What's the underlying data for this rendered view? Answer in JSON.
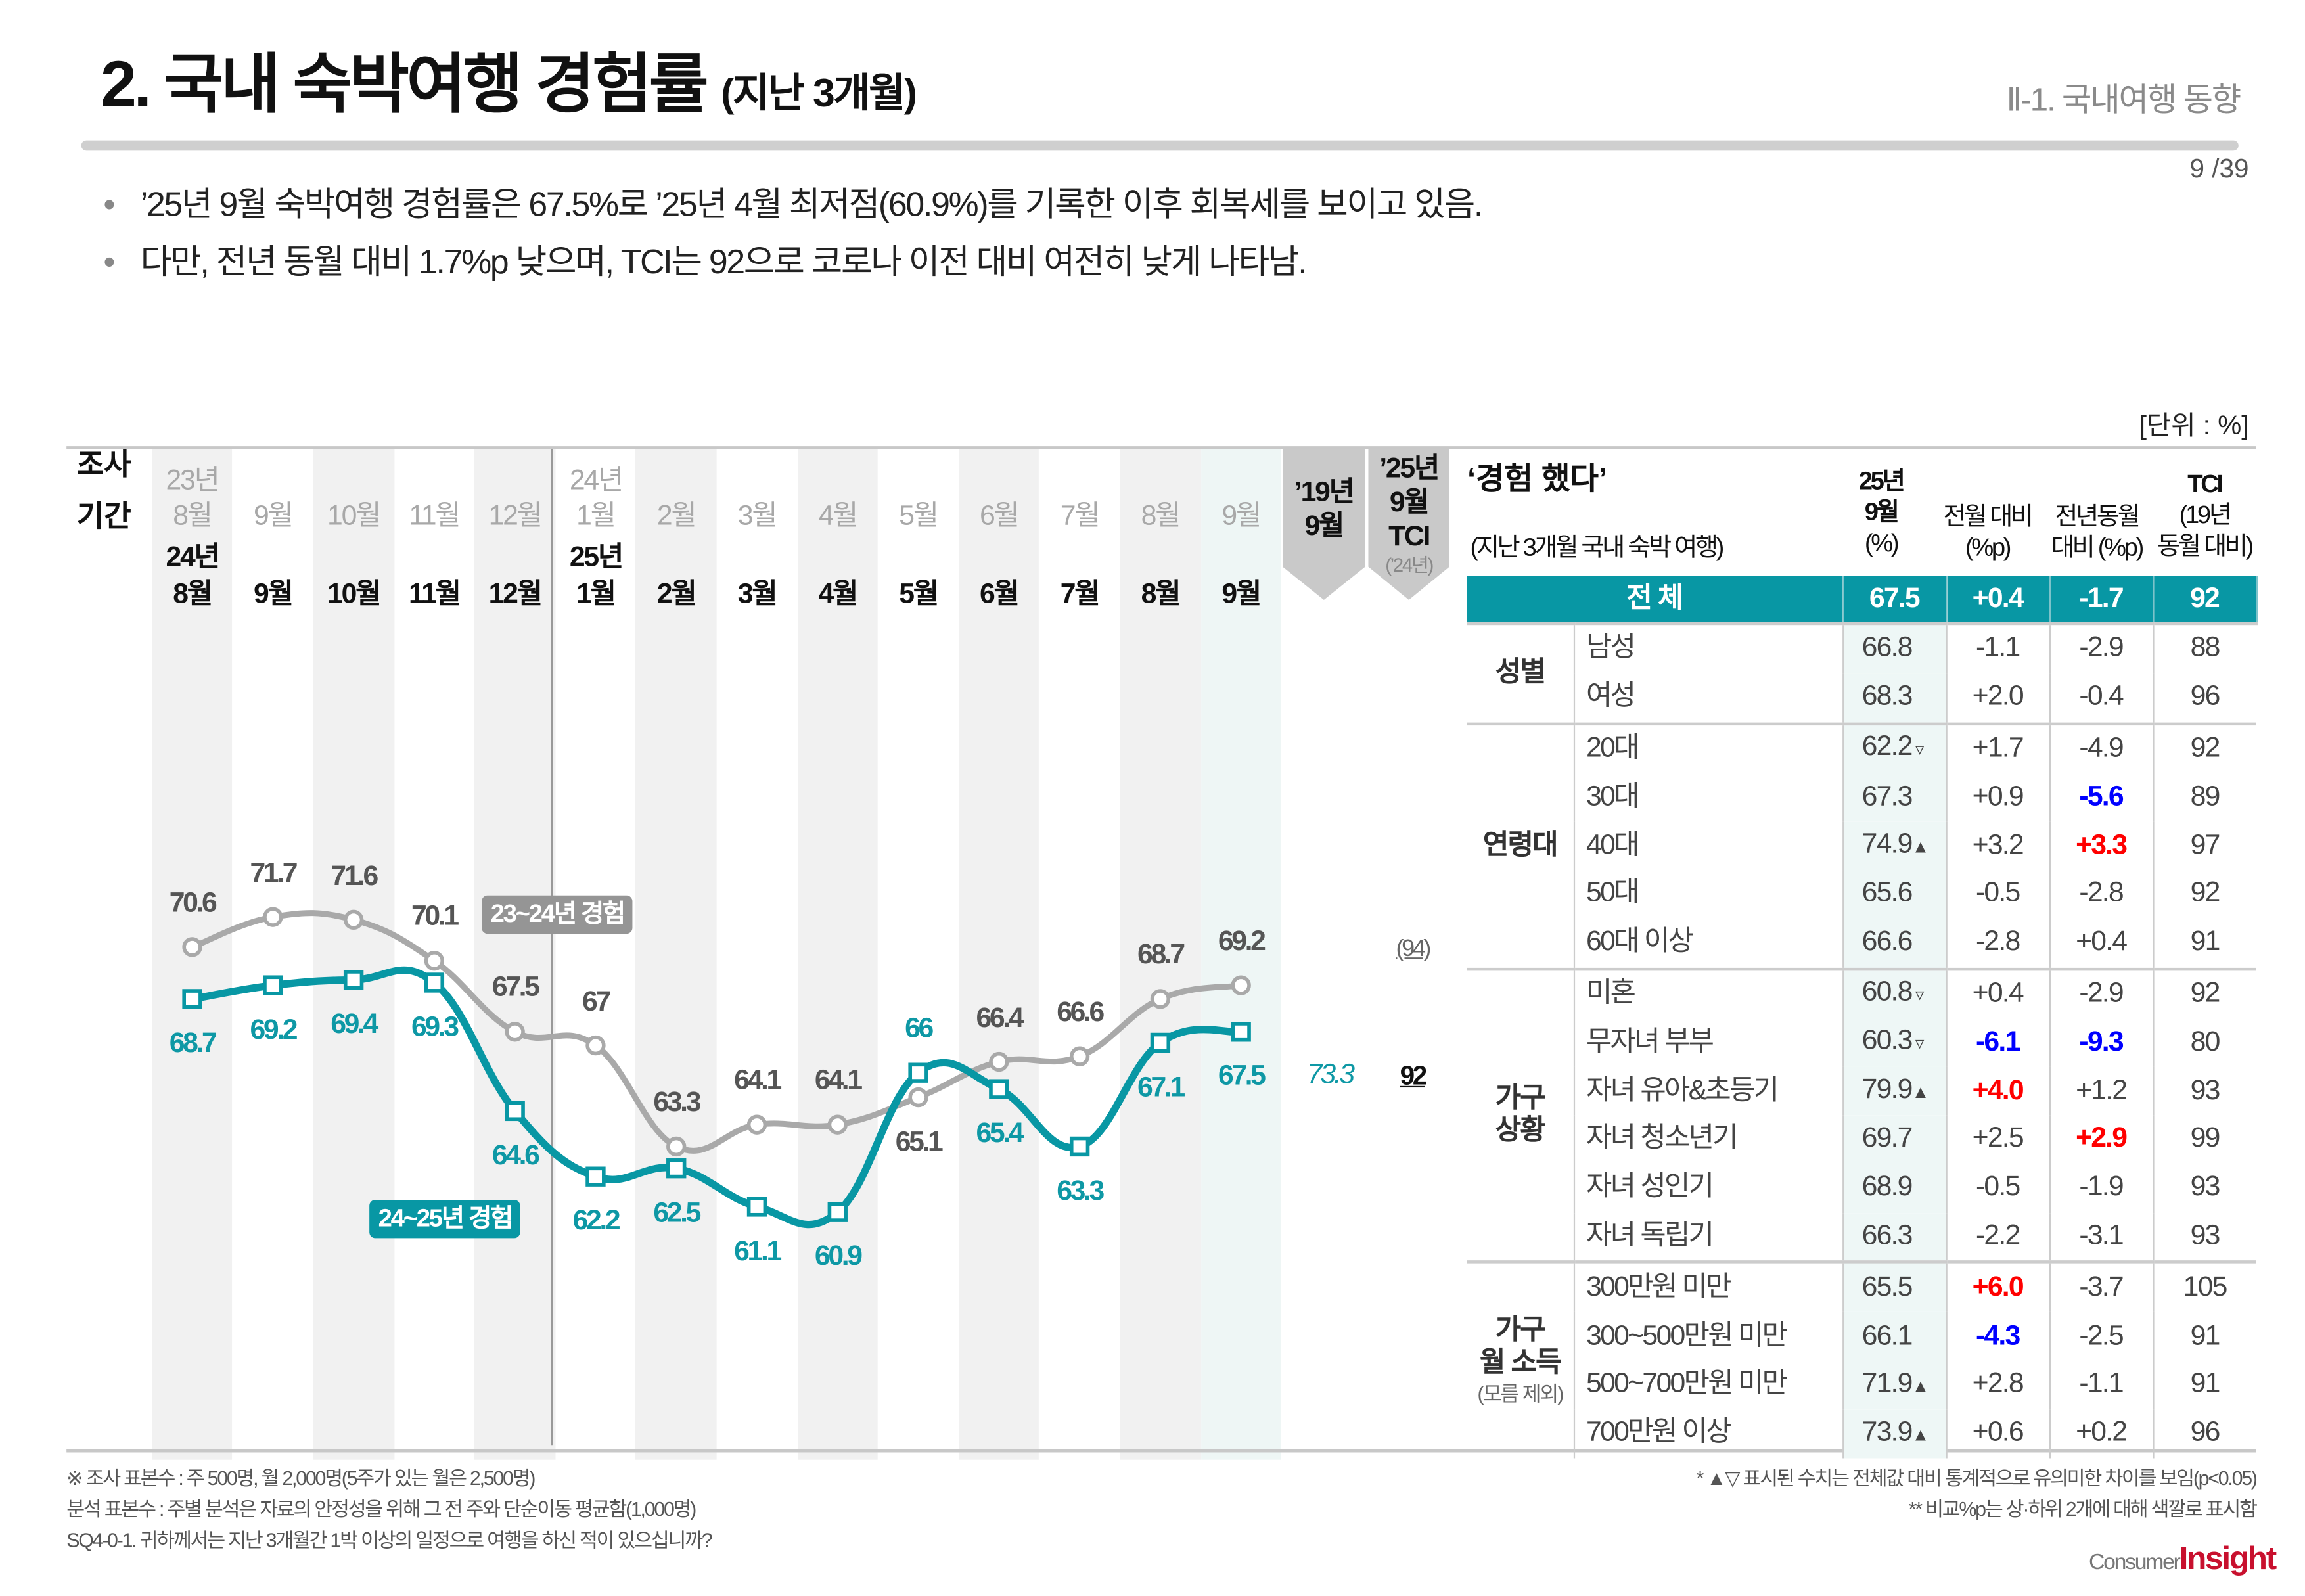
{
  "header": {
    "title": "2. 국내 숙박여행 경험률",
    "title_sub": "(지난 3개월)",
    "section": "Ⅱ-1. 국내여행 동향",
    "page": "9 /39"
  },
  "bullets": [
    "’25년 9월 숙박여행 경험률은 67.5%로 ’25년 4월 최저점(60.9%)를 기록한 이후 회복세를 보이고 있음.",
    "다만, 전년 동월 대비 1.7%p 낮으며, TCI는 92으로 코로나 이전 대비 여전히 낮게 나타남."
  ],
  "unit": "[단위 : %]",
  "period_label": [
    "조사",
    "기간"
  ],
  "prev_year_labels": {
    "y1": "23년",
    "y2": "24년"
  },
  "curr_year_labels": {
    "y1": "24년",
    "y2": "25년"
  },
  "months": [
    "8월",
    "9월",
    "10월",
    "11월",
    "12월",
    "1월",
    "2월",
    "3월",
    "4월",
    "5월",
    "6월",
    "7월",
    "8월",
    "9월"
  ],
  "extra_headers": {
    "col2019": [
      "’19년",
      "9월"
    ],
    "tci": [
      "’25년",
      "9월",
      "TCI"
    ],
    "tci_note": "(’24년)"
  },
  "chart_data": {
    "type": "line",
    "categories": [
      "8월",
      "9월",
      "10월",
      "11월",
      "12월",
      "1월",
      "2월",
      "3월",
      "4월",
      "5월",
      "6월",
      "7월",
      "8월",
      "9월"
    ],
    "series": [
      {
        "name": "23~24년 경험",
        "color": "#a9a9a9",
        "values": [
          70.6,
          71.7,
          71.6,
          70.1,
          67.5,
          67.0,
          63.3,
          64.1,
          64.1,
          65.1,
          66.4,
          66.6,
          68.7,
          69.2
        ]
      },
      {
        "name": "24~25년 경험",
        "color": "#0897a4",
        "values": [
          68.7,
          69.2,
          69.4,
          69.3,
          64.6,
          62.2,
          62.5,
          61.1,
          60.9,
          66.0,
          65.4,
          63.3,
          67.1,
          67.5
        ]
      }
    ],
    "value_2019_sep": "73.3",
    "tci_2025_sep": "92",
    "tci_2024_sep": "(94)"
  },
  "table": {
    "title": "‘경험 했다’",
    "subtitle": "(지난 3개월 국내 숙박 여행)",
    "headers": {
      "val": [
        "25년",
        "9월",
        "(%)"
      ],
      "mom": [
        "전월 대비",
        "(%p)"
      ],
      "yoy": [
        "전년동월",
        "대비 (%p)"
      ],
      "tci": [
        "TCI",
        "(19년",
        "동월 대비)"
      ]
    },
    "total": {
      "label": "전  체",
      "val": "67.5",
      "mom": "+0.4",
      "yoy": "-1.7",
      "tci": "92"
    },
    "groups": [
      {
        "name": "성별",
        "rows": [
          {
            "item": "남성",
            "val": "66.8",
            "mark": "",
            "mom": "-1.1",
            "yoy": "-2.9",
            "tci": "88"
          },
          {
            "item": "여성",
            "val": "68.3",
            "mark": "",
            "mom": "+2.0",
            "yoy": "-0.4",
            "tci": "96"
          }
        ]
      },
      {
        "name": "연령대",
        "rows": [
          {
            "item": "20대",
            "val": "62.2",
            "mark": "▿",
            "mom": "+1.7",
            "yoy": "-4.9",
            "tci": "92"
          },
          {
            "item": "30대",
            "val": "67.3",
            "mark": "",
            "mom": "+0.9",
            "yoy": "-5.6",
            "yoy_color": "blue",
            "tci": "89"
          },
          {
            "item": "40대",
            "val": "74.9",
            "mark": "▲",
            "mom": "+3.2",
            "yoy": "+3.3",
            "yoy_color": "red",
            "tci": "97"
          },
          {
            "item": "50대",
            "val": "65.6",
            "mark": "",
            "mom": "-0.5",
            "yoy": "-2.8",
            "tci": "92"
          },
          {
            "item": "60대 이상",
            "val": "66.6",
            "mark": "",
            "mom": "-2.8",
            "yoy": "+0.4",
            "tci": "91"
          }
        ]
      },
      {
        "name": "가구\n상황",
        "rows": [
          {
            "item": "미혼",
            "val": "60.8",
            "mark": "▿",
            "mom": "+0.4",
            "yoy": "-2.9",
            "tci": "92"
          },
          {
            "item": "무자녀 부부",
            "val": "60.3",
            "mark": "▿",
            "mom": "-6.1",
            "mom_color": "blue",
            "yoy": "-9.3",
            "yoy_color": "blue",
            "tci": "80"
          },
          {
            "item": "자녀 유아&초등기",
            "val": "79.9",
            "mark": "▲",
            "mom": "+4.0",
            "mom_color": "red",
            "yoy": "+1.2",
            "tci": "93"
          },
          {
            "item": "자녀 청소년기",
            "val": "69.7",
            "mark": "",
            "mom": "+2.5",
            "yoy": "+2.9",
            "yoy_color": "red",
            "tci": "99"
          },
          {
            "item": "자녀 성인기",
            "val": "68.9",
            "mark": "",
            "mom": "-0.5",
            "yoy": "-1.9",
            "tci": "93"
          },
          {
            "item": "자녀 독립기",
            "val": "66.3",
            "mark": "",
            "mom": "-2.2",
            "yoy": "-3.1",
            "tci": "93"
          }
        ]
      },
      {
        "name": "가구\n월 소득",
        "note": "(모름 제외)",
        "rows": [
          {
            "item": "300만원 미만",
            "val": "65.5",
            "mark": "",
            "mom": "+6.0",
            "mom_color": "red",
            "yoy": "-3.7",
            "tci": "105"
          },
          {
            "item": "300~500만원 미만",
            "val": "66.1",
            "mark": "",
            "mom": "-4.3",
            "mom_color": "blue",
            "yoy": "-2.5",
            "tci": "91"
          },
          {
            "item": "500~700만원 미만",
            "val": "71.9",
            "mark": "▲",
            "mom": "+2.8",
            "yoy": "-1.1",
            "tci": "91"
          },
          {
            "item": "700만원 이상",
            "val": "73.9",
            "mark": "▲",
            "mom": "+0.6",
            "yoy": "+0.2",
            "tci": "96"
          }
        ]
      }
    ]
  },
  "footnotes": {
    "left": [
      "※ 조사 표본수 : 주 500명, 월 2,000명(5주가 있는 월은 2,500명)",
      "  분석 표본수 : 주별 분석은 자료의 안정성을 위해 그 전 주와 단순이동 평균함(1,000명)",
      "SQ4-0-1. 귀하께서는 지난 3개월간 1박 이상의 일정으로 여행을 하신 적이 있으십니까?"
    ],
    "right": [
      "* ▲▽ 표시된 수치는 전체값 대비 통계적으로 유의미한 차이를 보임(p<0.05)",
      "** 비교%p는 상·하위 2개에 대해 색깔로 표시함"
    ]
  },
  "logo": {
    "part1": "Consumer",
    "part2": "Insight"
  },
  "colors": {
    "teal": "#0897a4",
    "gray_line": "#a9a9a9",
    "red": "#ff0000",
    "blue": "#0000ff",
    "logo_red": "#c8102e"
  }
}
